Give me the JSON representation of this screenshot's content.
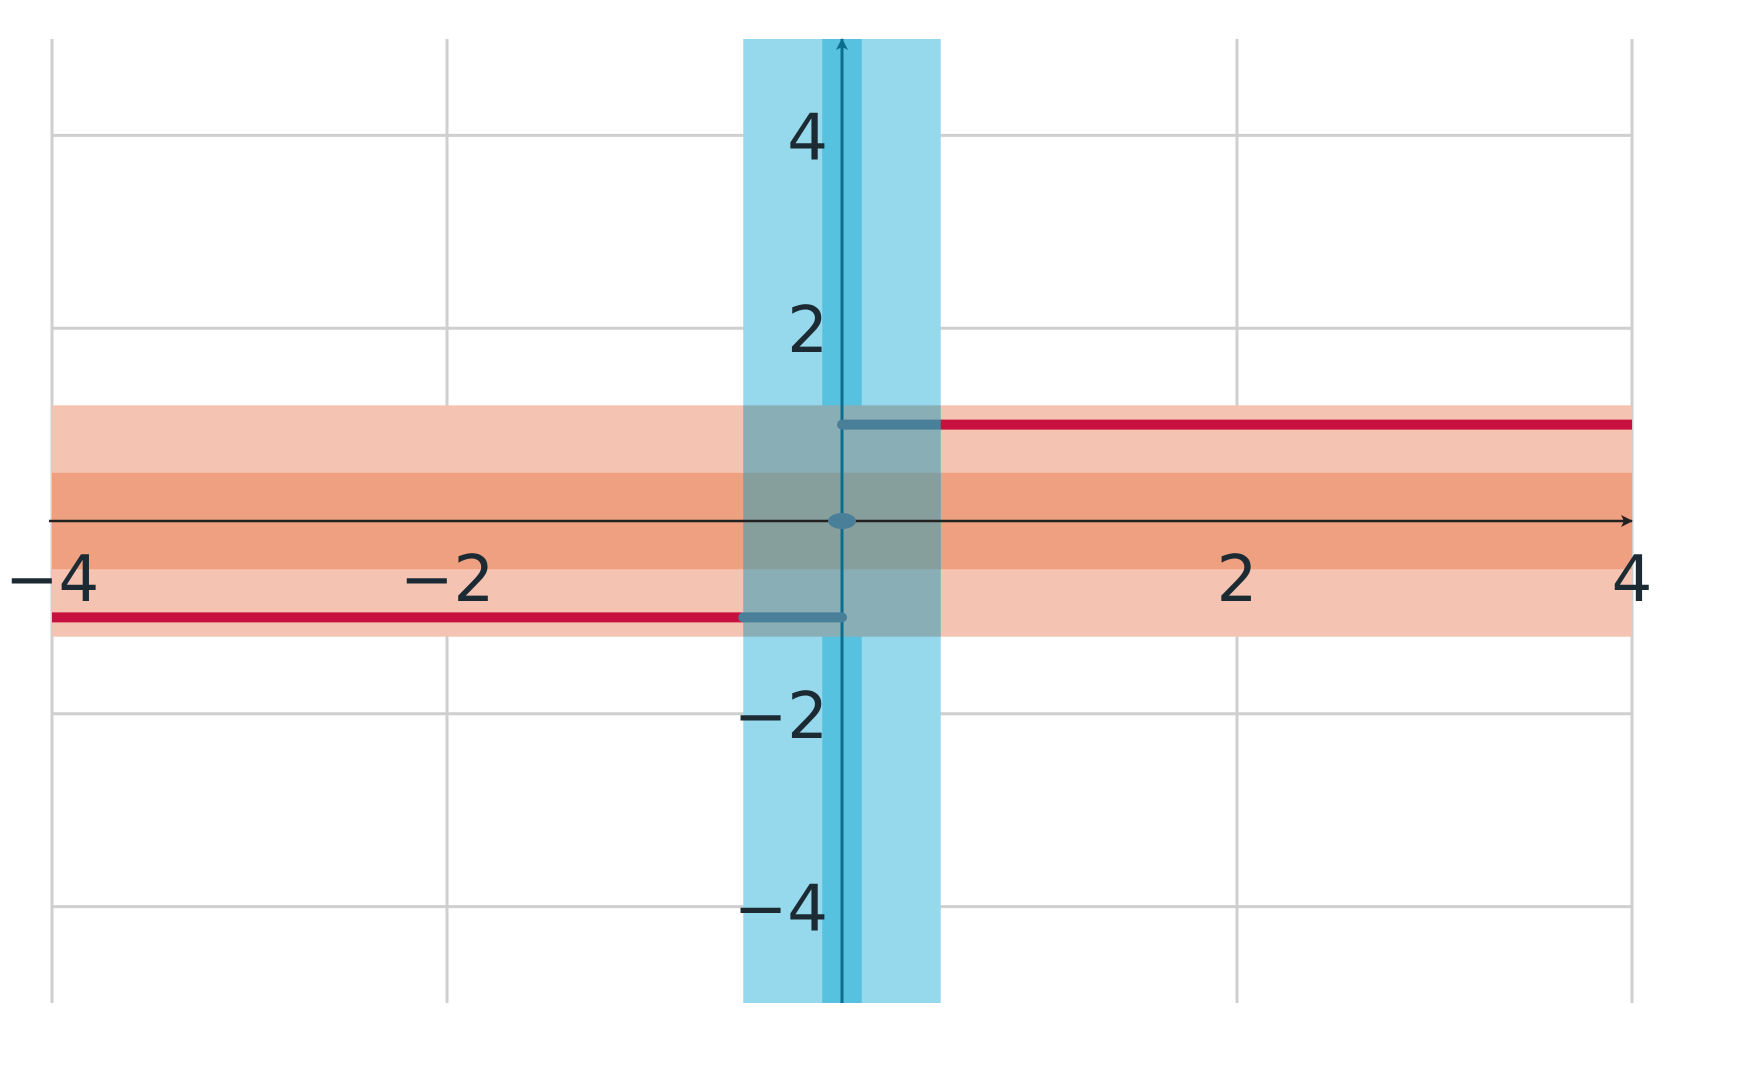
{
  "chart_data": {
    "type": "line",
    "title": "",
    "xlabel": "",
    "ylabel": "",
    "xlim": [
      -4,
      4
    ],
    "ylim": [
      -5,
      5
    ],
    "grid": true,
    "x_ticks": [
      {
        "value": -4,
        "label": "−4"
      },
      {
        "value": -2,
        "label": "−2"
      },
      {
        "value": 2,
        "label": "2"
      },
      {
        "value": 4,
        "label": "4"
      }
    ],
    "y_ticks": [
      {
        "value": 4,
        "label": "4"
      },
      {
        "value": 2,
        "label": "2"
      },
      {
        "value": -2,
        "label": "−2"
      },
      {
        "value": -4,
        "label": "−4"
      }
    ],
    "series": [
      {
        "segments": [
          {
            "x": [
              -4,
              0
            ],
            "y": [
              -1,
              -1
            ]
          },
          {
            "x": [
              0,
              4
            ],
            "y": [
              1,
              1
            ]
          }
        ]
      }
    ],
    "points": [
      {
        "x": 0,
        "y": 0
      }
    ],
    "bands": [
      {
        "orientation": "horizontal",
        "range": [
          -1.2,
          1.2
        ],
        "color": "#f5c3b1"
      },
      {
        "orientation": "horizontal",
        "range": [
          -0.5,
          0.5
        ],
        "color": "#eea080"
      },
      {
        "orientation": "vertical",
        "range": [
          -0.5,
          0.5
        ],
        "color": "#96d8ec"
      },
      {
        "orientation": "vertical",
        "range": [
          -0.1,
          0.1
        ],
        "color": "#57c1e0"
      }
    ],
    "colors": {
      "series": "#c8103f",
      "point": "#4a7f99",
      "grid": "#cfcfcf",
      "axis": "#222222",
      "y_axis": "#0c6e8f",
      "overlap": "#8aaeb5",
      "overlap_inner": "#879f9c"
    }
  }
}
